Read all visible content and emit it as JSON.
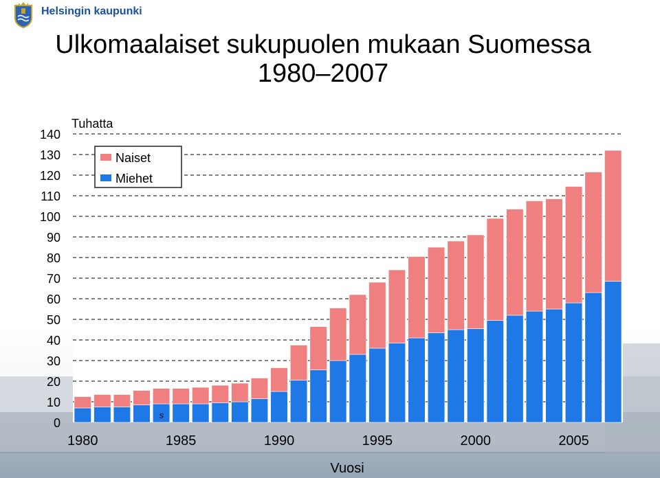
{
  "header": {
    "org_name": "Helsingin kaupunki",
    "logo_icon": "helsinki-crest-icon"
  },
  "title": {
    "line1": "Ulkomaalaiset sukupuolen mukaan Suomessa",
    "line2": "1980–2007"
  },
  "chart_data": {
    "type": "bar",
    "stacked": true,
    "ylabel": "Tuhatta",
    "xlabel": "Vuosi",
    "ylim": [
      0,
      140
    ],
    "yticks": [
      0,
      10,
      20,
      30,
      40,
      50,
      60,
      70,
      80,
      90,
      100,
      110,
      120,
      130,
      140
    ],
    "xtick_labels": [
      "1980",
      "1985",
      "1990",
      "1995",
      "2000",
      "2005"
    ],
    "grid": "dashed-horizontal",
    "legend_position": "top-left",
    "categories": [
      1980,
      1981,
      1982,
      1983,
      1984,
      1985,
      1986,
      1987,
      1988,
      1989,
      1990,
      1991,
      1992,
      1993,
      1994,
      1995,
      1996,
      1997,
      1998,
      1999,
      2000,
      2001,
      2002,
      2003,
      2004,
      2005,
      2006,
      2007
    ],
    "series": [
      {
        "name": "Miehet",
        "color": "#1e78e6",
        "values": [
          7,
          7.5,
          7.5,
          8.5,
          9,
          9,
          9,
          9.5,
          10,
          11.5,
          15,
          20.5,
          25.5,
          30,
          33,
          36,
          38.5,
          41,
          43.5,
          45,
          45.5,
          49.5,
          52,
          54,
          55,
          58,
          63,
          68.5
        ]
      },
      {
        "name": "Naiset",
        "color": "#f08080",
        "values": [
          5.5,
          6,
          6,
          7,
          7.5,
          7.5,
          8,
          8.5,
          9,
          10,
          11.5,
          17,
          21,
          25.5,
          29,
          32,
          35.5,
          39.5,
          41.5,
          43,
          45.5,
          49.5,
          51.5,
          53.5,
          53.5,
          56.5,
          58.5,
          63.5
        ]
      }
    ],
    "annotations": [
      {
        "text": "s",
        "near_year": 1984
      }
    ]
  }
}
